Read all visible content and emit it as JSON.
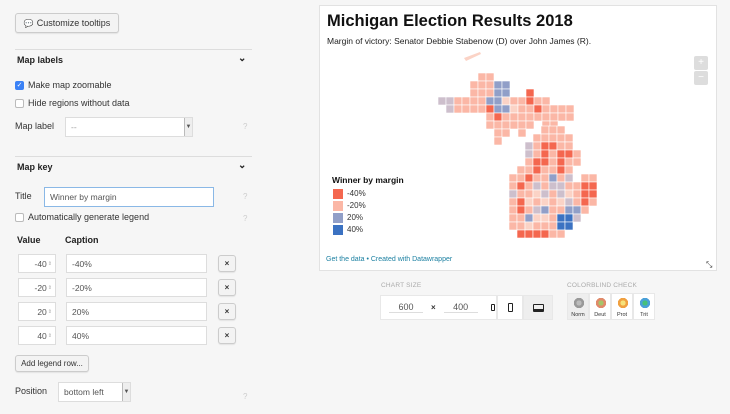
{
  "sidebar": {
    "customize_tooltips": "Customize tooltips",
    "map_labels": {
      "heading": "Map labels",
      "zoomable": {
        "label": "Make map zoomable",
        "checked": true
      },
      "hide_regions": {
        "label": "Hide regions without data",
        "checked": false
      },
      "map_label": {
        "label": "Map label",
        "value": "--"
      },
      "help": "?"
    },
    "map_key": {
      "heading": "Map key",
      "title_label": "Title",
      "title_value": "Winner by margin",
      "auto_legend": {
        "label": "Automatically generate legend",
        "checked": false
      },
      "value_header": "Value",
      "caption_header": "Caption",
      "rows": [
        {
          "value": "-40",
          "caption": "-40%"
        },
        {
          "value": "-20",
          "caption": "-20%"
        },
        {
          "value": "20",
          "caption": "20%"
        },
        {
          "value": "40",
          "caption": "40%"
        }
      ],
      "remove_icon": "×",
      "add_row": "Add legend row...",
      "position_label": "Position",
      "position_value": "bottom left",
      "help": "?"
    }
  },
  "chart": {
    "title": "Michigan Election Results 2018",
    "subtitle": "Margin of victory: Senator Debbie Stabenow (D) over John James (R).",
    "zoom_in": "+",
    "zoom_out": "−",
    "legend_title": "Winner by margin",
    "legend": [
      {
        "label": "-40%",
        "color": "#f4674f"
      },
      {
        "label": "-20%",
        "color": "#fbb7a6"
      },
      {
        "label": "20%",
        "color": "#919fc8"
      },
      {
        "label": "40%",
        "color": "#3b72c2"
      }
    ],
    "footer_get_data": "Get the data",
    "footer_sep": " • ",
    "footer_created": "Created with Datawrapper"
  },
  "chart_size": {
    "label": "CHART SIZE",
    "width": "600",
    "height": "400",
    "times": "×"
  },
  "colorblind": {
    "label": "COLORBLIND CHECK",
    "modes": [
      {
        "label": "Norm",
        "active": true
      },
      {
        "label": "Deut"
      },
      {
        "label": "Prot"
      },
      {
        "label": "Trit"
      }
    ]
  }
}
